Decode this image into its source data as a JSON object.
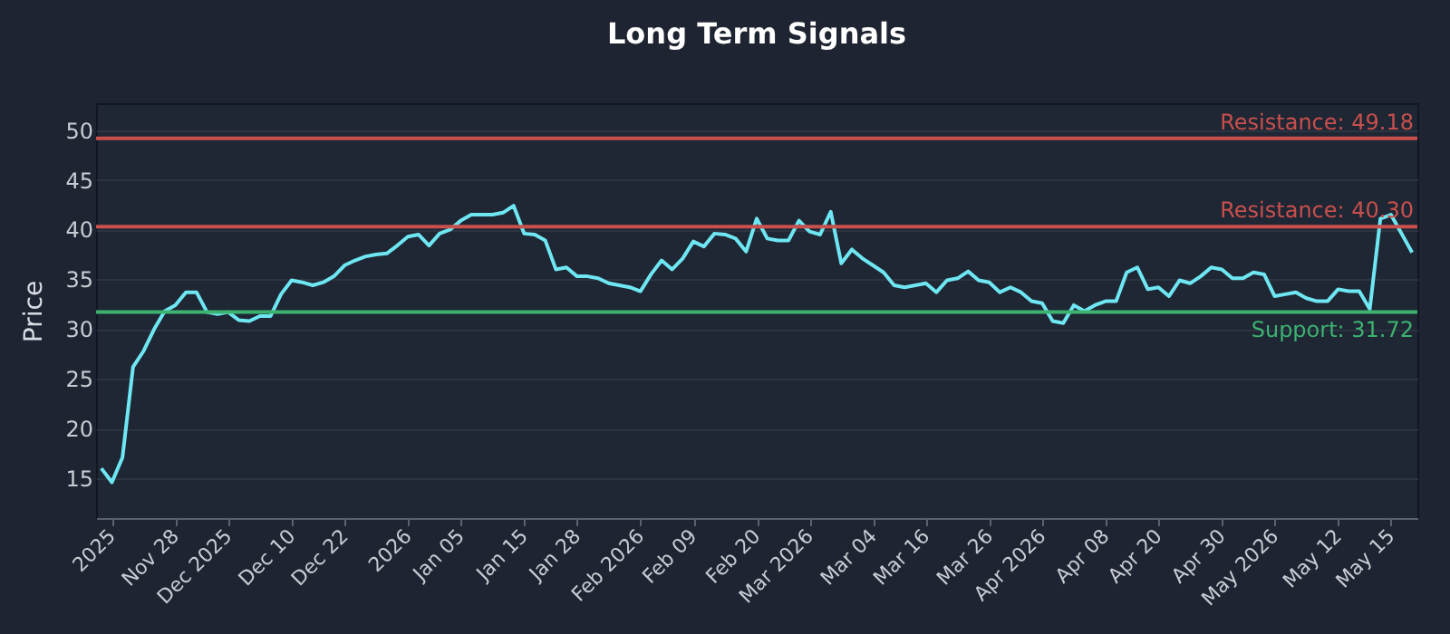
{
  "chart_data": {
    "type": "line",
    "title": "Long Term Signals",
    "ylabel": "Price",
    "categories": [
      null,
      "2025",
      null,
      null,
      null,
      null,
      null,
      "Nov 28",
      null,
      null,
      null,
      null,
      "Dec 2025",
      null,
      null,
      null,
      null,
      null,
      "Dec 10",
      null,
      null,
      null,
      null,
      "Dec 22",
      null,
      null,
      null,
      null,
      null,
      "2026",
      null,
      null,
      null,
      null,
      "Jan 05",
      null,
      null,
      null,
      null,
      null,
      "Jan 15",
      null,
      null,
      null,
      null,
      "Jan 28",
      null,
      null,
      null,
      null,
      null,
      "Feb 2026",
      null,
      null,
      null,
      null,
      "Feb 09",
      null,
      null,
      null,
      null,
      null,
      "Feb 20",
      null,
      null,
      null,
      null,
      "Mar 2026",
      null,
      null,
      null,
      null,
      null,
      "Mar 04",
      null,
      null,
      null,
      null,
      "Mar 16",
      null,
      null,
      null,
      null,
      null,
      "Mar 26",
      null,
      null,
      null,
      null,
      "Apr 2026",
      null,
      null,
      null,
      null,
      null,
      "Apr 08",
      null,
      null,
      null,
      null,
      "Apr 20",
      null,
      null,
      null,
      null,
      null,
      "Apr 30",
      null,
      null,
      null,
      null,
      "May 2026",
      null,
      null,
      null,
      null,
      null,
      "May 12",
      null,
      null,
      null,
      null,
      "May 15",
      null,
      null
    ],
    "series": [
      {
        "color": "#6ee7f2",
        "values": [
          16.0,
          14.6,
          17.1,
          26.2,
          27.8,
          30.0,
          31.8,
          32.4,
          33.7,
          33.7,
          31.7,
          31.5,
          31.7,
          30.9,
          30.8,
          31.3,
          31.3,
          33.5,
          34.9,
          34.7,
          34.4,
          34.7,
          35.3,
          36.4,
          36.9,
          37.3,
          37.5,
          37.6,
          38.4,
          39.3,
          39.5,
          38.4,
          39.6,
          40.0,
          40.9,
          41.5,
          41.5,
          41.5,
          41.7,
          42.4,
          39.6,
          39.5,
          38.9,
          36.0,
          36.2,
          35.3,
          35.3,
          35.1,
          34.6,
          34.4,
          34.2,
          33.8,
          35.5,
          36.9,
          36.0,
          37.1,
          38.8,
          38.3,
          39.6,
          39.5,
          39.1,
          37.8,
          41.1,
          39.1,
          38.9,
          38.9,
          40.9,
          39.8,
          39.5,
          41.8,
          36.6,
          38.0,
          37.1,
          36.4,
          35.7,
          34.4,
          34.2,
          34.4,
          34.6,
          33.7,
          34.9,
          35.1,
          35.8,
          34.9,
          34.7,
          33.7,
          34.2,
          33.7,
          32.8,
          32.6,
          30.8,
          30.6,
          32.4,
          31.8,
          32.4,
          32.8,
          32.8,
          35.7,
          36.2,
          34.0,
          34.2,
          33.3,
          34.9,
          34.6,
          35.3,
          36.2,
          36.0,
          35.1,
          35.1,
          35.7,
          35.5,
          33.3,
          33.5,
          33.7,
          33.1,
          32.8,
          32.8,
          34.0,
          33.8,
          33.8,
          32.0,
          41.1,
          41.5,
          39.6,
          37.7
        ]
      }
    ],
    "ylim": [
      11,
      52.7
    ],
    "yticks": [
      15,
      20,
      25,
      30,
      35,
      40,
      45,
      50
    ],
    "grid": "y",
    "line_style": "solid",
    "marker": "none",
    "ref_lines": [
      {
        "axis": "y",
        "value": 49.18,
        "label": "Resistance: 49.18",
        "color": "#c9504d"
      },
      {
        "axis": "y",
        "value": 40.3,
        "label": "Resistance: 40.30",
        "color": "#c9504d"
      },
      {
        "axis": "y",
        "value": 31.72,
        "label": "Support: 31.72",
        "color": "#3cb371"
      }
    ]
  }
}
